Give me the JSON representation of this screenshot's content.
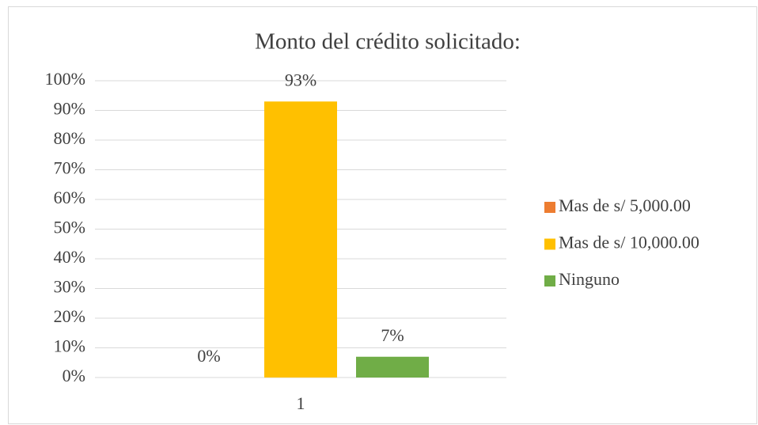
{
  "chart_data": {
    "type": "bar",
    "title": "Monto del crédito solicitado:",
    "categories": [
      "1"
    ],
    "series": [
      {
        "name": "Mas de s/ 5,000.00",
        "color": "#ed7d31",
        "values": [
          0
        ],
        "value_labels": [
          "0%"
        ]
      },
      {
        "name": "Mas de s/ 10,000.00",
        "color": "#ffc000",
        "values": [
          93
        ],
        "value_labels": [
          "93%"
        ]
      },
      {
        "name": "Ninguno",
        "color": "#70ad47",
        "values": [
          7
        ],
        "value_labels": [
          "7%"
        ]
      }
    ],
    "ylim": [
      0,
      100
    ],
    "yticks": [
      {
        "value": 0,
        "label": "0%"
      },
      {
        "value": 10,
        "label": "10%"
      },
      {
        "value": 20,
        "label": "20%"
      },
      {
        "value": 30,
        "label": "30%"
      },
      {
        "value": 40,
        "label": "40%"
      },
      {
        "value": 50,
        "label": "50%"
      },
      {
        "value": 60,
        "label": "60%"
      },
      {
        "value": 70,
        "label": "70%"
      },
      {
        "value": 80,
        "label": "80%"
      },
      {
        "value": 90,
        "label": "90%"
      },
      {
        "value": 100,
        "label": "100%"
      }
    ],
    "grid": true,
    "legend": "right"
  }
}
